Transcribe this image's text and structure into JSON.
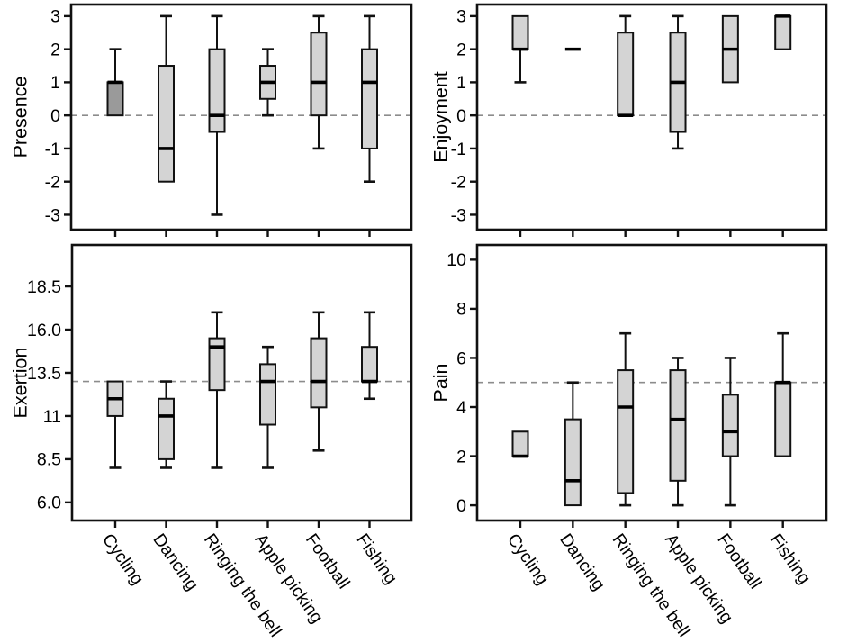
{
  "figure": {
    "kind": "2x2-boxplot-grid",
    "categories": [
      "Cycling",
      "Dancing",
      "Ringing the bell",
      "Apple picking",
      "Football",
      "Fishing"
    ],
    "colors": {
      "background": "#ffffff",
      "box_fill_light": "#d4d4d4",
      "box_fill_dark": "#9a9a9a",
      "line": "#111111",
      "ref_line": "#8c8c8c"
    }
  },
  "chart_data": [
    {
      "type": "box",
      "panel": "presence",
      "position": "top-left",
      "ylabel": "Presence",
      "ylim": [
        -3.45,
        3.35
      ],
      "yticks": {
        "values": [
          3,
          2,
          1,
          0,
          -1,
          -2,
          -3
        ],
        "labels": [
          "3",
          "2",
          "1",
          "0",
          "-1",
          "-2",
          "-3"
        ]
      },
      "ref_line": 0,
      "grid": false,
      "show_xticklabels": false,
      "categories": [
        "Cycling",
        "Dancing",
        "Ringing the bell",
        "Apple picking",
        "Football",
        "Fishing"
      ],
      "boxes": [
        {
          "category": "Cycling",
          "whisker_low": 0,
          "q1": 0,
          "median": 1,
          "q3": 1,
          "whisker_high": 2,
          "fill": "dark"
        },
        {
          "category": "Dancing",
          "whisker_low": -2,
          "q1": -2,
          "median": -1,
          "q3": 1.5,
          "whisker_high": 3,
          "fill": "light"
        },
        {
          "category": "Ringing the bell",
          "whisker_low": -3,
          "q1": -0.5,
          "median": 0,
          "q3": 2,
          "whisker_high": 3,
          "fill": "light"
        },
        {
          "category": "Apple picking",
          "whisker_low": 0,
          "q1": 0.5,
          "median": 1,
          "q3": 1.5,
          "whisker_high": 2,
          "fill": "light"
        },
        {
          "category": "Football",
          "whisker_low": -1,
          "q1": 0,
          "median": 1,
          "q3": 2.5,
          "whisker_high": 3,
          "fill": "light"
        },
        {
          "category": "Fishing",
          "whisker_low": -2,
          "q1": -1,
          "median": 1,
          "q3": 2,
          "whisker_high": 3,
          "fill": "light"
        }
      ]
    },
    {
      "type": "box",
      "panel": "enjoyment",
      "position": "top-right",
      "ylabel": "Enjoyment",
      "ylim": [
        -3.45,
        3.35
      ],
      "yticks": {
        "values": [
          3,
          2,
          1,
          0,
          -1,
          -2,
          -3
        ],
        "labels": [
          "3",
          "2",
          "1",
          "0",
          "-1",
          "-2",
          "-3"
        ]
      },
      "ref_line": 0,
      "grid": false,
      "show_xticklabels": false,
      "categories": [
        "Cycling",
        "Dancing",
        "Ringing the bell",
        "Apple picking",
        "Football",
        "Fishing"
      ],
      "boxes": [
        {
          "category": "Cycling",
          "whisker_low": 1,
          "q1": 2,
          "median": 2,
          "q3": 3,
          "whisker_high": 3,
          "fill": "light"
        },
        {
          "category": "Dancing",
          "whisker_low": 2,
          "q1": 2,
          "median": 2,
          "q3": 2,
          "whisker_high": 2,
          "fill": "light"
        },
        {
          "category": "Ringing the bell",
          "whisker_low": 0,
          "q1": 0,
          "median": 0,
          "q3": 2.5,
          "whisker_high": 3,
          "fill": "light"
        },
        {
          "category": "Apple picking",
          "whisker_low": -1,
          "q1": -0.5,
          "median": 1,
          "q3": 2.5,
          "whisker_high": 3,
          "fill": "light"
        },
        {
          "category": "Football",
          "whisker_low": 1,
          "q1": 1,
          "median": 2,
          "q3": 3,
          "whisker_high": 3,
          "fill": "light"
        },
        {
          "category": "Fishing",
          "whisker_low": 2,
          "q1": 2,
          "median": 3,
          "q3": 3,
          "whisker_high": 3,
          "fill": "light"
        }
      ]
    },
    {
      "type": "box",
      "panel": "exertion",
      "position": "bottom-left",
      "ylabel": "Exertion",
      "ylim": [
        4.95,
        20.9
      ],
      "yticks": {
        "values": [
          18.5,
          16,
          13.5,
          11,
          8.5,
          6
        ],
        "labels": [
          "18.5",
          "16.0",
          "13.5",
          "11",
          "8.5",
          "6.0"
        ]
      },
      "ref_line": 13,
      "grid": false,
      "show_xticklabels": true,
      "categories": [
        "Cycling",
        "Dancing",
        "Ringing the bell",
        "Apple picking",
        "Football",
        "Fishing"
      ],
      "boxes": [
        {
          "category": "Cycling",
          "whisker_low": 8,
          "q1": 11,
          "median": 12,
          "q3": 13,
          "whisker_high": 13,
          "fill": "light"
        },
        {
          "category": "Dancing",
          "whisker_low": 8,
          "q1": 8.5,
          "median": 11,
          "q3": 12,
          "whisker_high": 13,
          "fill": "light"
        },
        {
          "category": "Ringing the bell",
          "whisker_low": 8,
          "q1": 12.5,
          "median": 15,
          "q3": 15.5,
          "whisker_high": 17,
          "fill": "light"
        },
        {
          "category": "Apple picking",
          "whisker_low": 8,
          "q1": 10.5,
          "median": 13,
          "q3": 14,
          "whisker_high": 15,
          "fill": "light"
        },
        {
          "category": "Football",
          "whisker_low": 9,
          "q1": 11.5,
          "median": 13,
          "q3": 15.5,
          "whisker_high": 17,
          "fill": "light"
        },
        {
          "category": "Fishing",
          "whisker_low": 12,
          "q1": 13,
          "median": 13,
          "q3": 15,
          "whisker_high": 17,
          "fill": "light"
        }
      ]
    },
    {
      "type": "box",
      "panel": "pain",
      "position": "bottom-right",
      "ylabel": "Pain",
      "ylim": [
        -0.62,
        10.6
      ],
      "yticks": {
        "values": [
          10,
          8,
          6,
          4,
          2,
          0
        ],
        "labels": [
          "10",
          "8",
          "6",
          "4",
          "2",
          "0"
        ]
      },
      "ref_line": 5,
      "grid": false,
      "show_xticklabels": true,
      "categories": [
        "Cycling",
        "Dancing",
        "Ringing the bell",
        "Apple picking",
        "Football",
        "Fishing"
      ],
      "boxes": [
        {
          "category": "Cycling",
          "whisker_low": 2,
          "q1": 2,
          "median": 2,
          "q3": 3,
          "whisker_high": 3,
          "fill": "light"
        },
        {
          "category": "Dancing",
          "whisker_low": 0,
          "q1": 0,
          "median": 1,
          "q3": 3.5,
          "whisker_high": 5,
          "fill": "light"
        },
        {
          "category": "Ringing the bell",
          "whisker_low": 0,
          "q1": 0.5,
          "median": 4,
          "q3": 5.5,
          "whisker_high": 7,
          "fill": "light"
        },
        {
          "category": "Apple picking",
          "whisker_low": 0,
          "q1": 1,
          "median": 3.5,
          "q3": 5.5,
          "whisker_high": 6,
          "fill": "light"
        },
        {
          "category": "Football",
          "whisker_low": 0,
          "q1": 2,
          "median": 3,
          "q3": 4.5,
          "whisker_high": 6,
          "fill": "light"
        },
        {
          "category": "Fishing",
          "whisker_low": 2,
          "q1": 2,
          "median": 5,
          "q3": 5,
          "whisker_high": 7,
          "fill": "light"
        }
      ]
    }
  ]
}
